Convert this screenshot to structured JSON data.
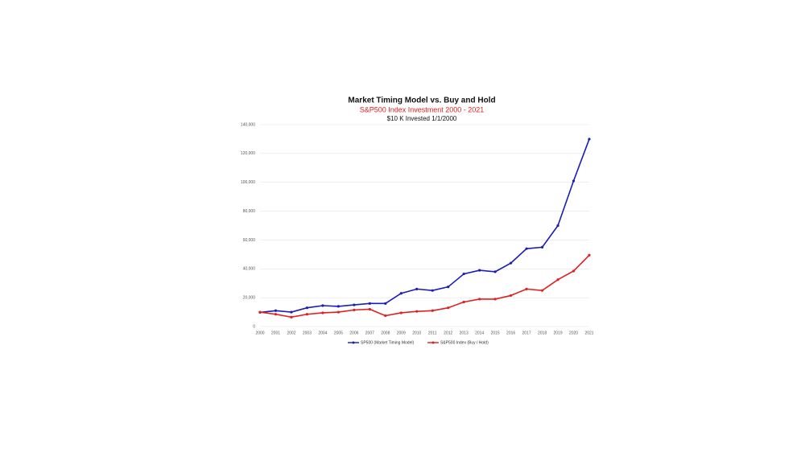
{
  "chart_data": {
    "type": "line",
    "title": "Market Timing Model vs. Buy and Hold",
    "subtitle": "S&P500 Index Investment 2000 - 2021",
    "note": "$10 K Invested 1/1/2000",
    "categories": [
      "2000",
      "2001",
      "2002",
      "2003",
      "2004",
      "2005",
      "2006",
      "2007",
      "2008",
      "2009",
      "2010",
      "2011",
      "2012",
      "2013",
      "2014",
      "2015",
      "2016",
      "2017",
      "2018",
      "2019",
      "2020",
      "2021"
    ],
    "series": [
      {
        "name": "SP500 (Market Timing Model)",
        "color": "#1c1cb8",
        "values": [
          9800,
          11000,
          10000,
          13000,
          14500,
          14000,
          15000,
          16000,
          16000,
          23000,
          26000,
          25000,
          27500,
          36500,
          39000,
          38000,
          44000,
          54000,
          55000,
          70000,
          101000,
          130000
        ]
      },
      {
        "name": "S&P500 Index (Buy / Hold)",
        "color": "#e02020",
        "values": [
          10000,
          8500,
          6500,
          8500,
          9500,
          10000,
          11500,
          12000,
          7500,
          9500,
          10500,
          11000,
          13000,
          17000,
          19000,
          19000,
          21500,
          26000,
          25000,
          32500,
          38500,
          49500
        ]
      }
    ],
    "ylim": [
      0,
      140000
    ],
    "yticks": [
      0,
      {
        "value": 20000,
        "label": "20,000"
      },
      {
        "value": 40000,
        "label": "40,000"
      },
      {
        "value": 60000,
        "label": "60,000"
      },
      {
        "value": 80000,
        "label": "80,000"
      },
      {
        "value": 100000,
        "label": "100,000"
      },
      {
        "value": 120000,
        "label": "120,000"
      },
      {
        "value": 140000,
        "label": "140,000"
      }
    ],
    "grid": true
  }
}
